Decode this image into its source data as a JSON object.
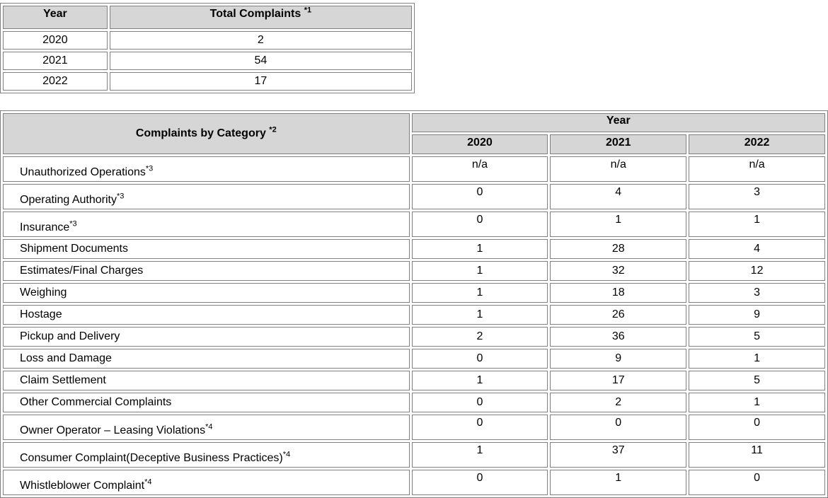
{
  "totals_table": {
    "headers": {
      "year": "Year",
      "total": "Total Complaints ",
      "total_note": "*1"
    },
    "rows": [
      {
        "year": "2020",
        "total": "2"
      },
      {
        "year": "2021",
        "total": "54"
      },
      {
        "year": "2022",
        "total": "17"
      }
    ]
  },
  "category_table": {
    "headers": {
      "category": "Complaints by Category ",
      "category_note": "*2",
      "year": "Year",
      "years": [
        "2020",
        "2021",
        "2022"
      ]
    },
    "rows": [
      {
        "label": "Unauthorized Operations",
        "note": "*3",
        "values": [
          "n/a",
          "n/a",
          "n/a"
        ]
      },
      {
        "label": "Operating Authority",
        "note": "*3",
        "values": [
          "0",
          "4",
          "3"
        ]
      },
      {
        "label": "Insurance",
        "note": "*3",
        "values": [
          "0",
          "1",
          "1"
        ]
      },
      {
        "label": "Shipment Documents",
        "note": "",
        "values": [
          "1",
          "28",
          "4"
        ]
      },
      {
        "label": "Estimates/Final Charges",
        "note": "",
        "values": [
          "1",
          "32",
          "12"
        ]
      },
      {
        "label": "Weighing",
        "note": "",
        "values": [
          "1",
          "18",
          "3"
        ]
      },
      {
        "label": "Hostage",
        "note": "",
        "values": [
          "1",
          "26",
          "9"
        ]
      },
      {
        "label": "Pickup and Delivery",
        "note": "",
        "values": [
          "2",
          "36",
          "5"
        ]
      },
      {
        "label": "Loss and Damage",
        "note": "",
        "values": [
          "0",
          "9",
          "1"
        ]
      },
      {
        "label": "Claim Settlement",
        "note": "",
        "values": [
          "1",
          "17",
          "5"
        ]
      },
      {
        "label": "Other Commercial Complaints",
        "note": "",
        "values": [
          "0",
          "2",
          "1"
        ]
      },
      {
        "label": "Owner Operator – Leasing Violations",
        "note": "*4",
        "values": [
          "0",
          "0",
          "0"
        ]
      },
      {
        "label": "Consumer Complaint(Deceptive Business Practices)",
        "note": "*4",
        "values": [
          "1",
          "37",
          "11"
        ]
      },
      {
        "label": "Whistleblower Complaint",
        "note": "*4",
        "values": [
          "0",
          "1",
          "0"
        ]
      }
    ]
  }
}
